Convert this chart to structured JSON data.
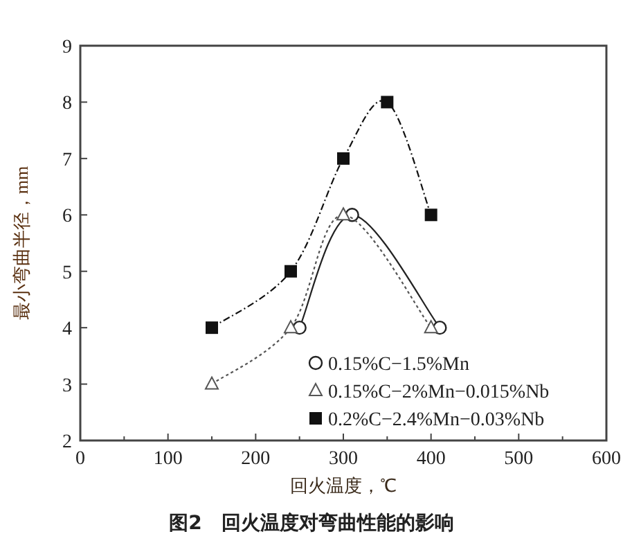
{
  "chart_data": {
    "type": "line",
    "title": "图2　回火温度对弯曲性能的影响",
    "xlabel": "回火温度，℃",
    "ylabel": "最小弯曲半径，mm",
    "xlim": [
      0,
      600
    ],
    "xticks": [
      0,
      {
        "value": 50,
        "label": null
      },
      100,
      {
        "value": 150,
        "label": null
      },
      200,
      {
        "value": 250,
        "label": null
      },
      300,
      {
        "value": 350,
        "label": null
      },
      400,
      {
        "value": 450,
        "label": null
      },
      500,
      {
        "value": 550,
        "label": null
      },
      600
    ],
    "ylim": [
      2,
      9
    ],
    "yticks": [
      2,
      3,
      4,
      5,
      6,
      7,
      8,
      9
    ],
    "grid": false,
    "legend": "bottom right",
    "series": [
      {
        "name": "0.15%C−1.5%Mn",
        "color": "#222222",
        "marker": "circle",
        "line_style": "solid",
        "x": [
          250,
          310,
          410
        ],
        "values": [
          4,
          6,
          4
        ]
      },
      {
        "name": "0.15%C−2%Mn−0.015%Nb",
        "color": "#555555",
        "marker": "triangle",
        "line_style": "dotted",
        "x": [
          150,
          240,
          300,
          400
        ],
        "values": [
          3,
          4,
          6,
          4
        ]
      },
      {
        "name": "0.2%C−2.4%Mn−0.03%Nb",
        "color": "#111111",
        "marker": "square",
        "line_style": "dashed",
        "x": [
          150,
          240,
          300,
          350,
          400
        ],
        "values": [
          4,
          5,
          7,
          8,
          6
        ]
      }
    ]
  }
}
